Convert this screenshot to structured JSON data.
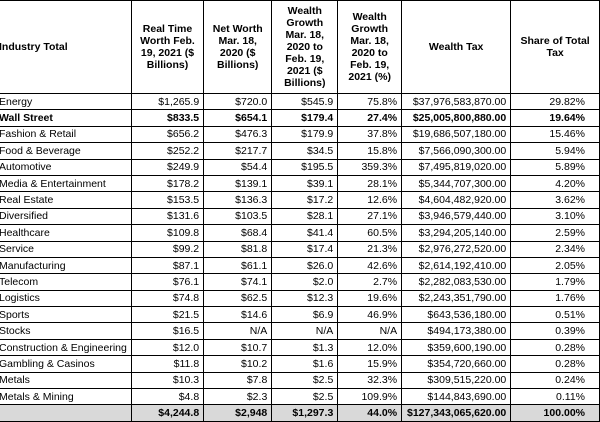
{
  "columns": [
    "Industry Total",
    "Real Time Worth Feb. 19, 2021 ($ Billions)",
    "Net Worth Mar. 18, 2020 ($ Billions)",
    "Wealth Growth Mar. 18, 2020 to Feb. 19, 2021 ($ Billions)",
    "Wealth Growth Mar. 18, 2020 to Feb. 19, 2021 (%)",
    "Wealth Tax",
    "Share of Total Tax"
  ],
  "rows": [
    {
      "industry": "Energy",
      "real": "$1,265.9",
      "net": "$720.0",
      "growth": "$545.9",
      "pct": "75.8%",
      "tax": "$37,976,583,870.00",
      "share": "29.82%",
      "bold": false
    },
    {
      "industry": "Wall Street",
      "real": "$833.5",
      "net": "$654.1",
      "growth": "$179.4",
      "pct": "27.4%",
      "tax": "$25,005,800,880.00",
      "share": "19.64%",
      "bold": true
    },
    {
      "industry": "Fashion & Retail",
      "real": "$656.2",
      "net": "$476.3",
      "growth": "$179.9",
      "pct": "37.8%",
      "tax": "$19,686,507,180.00",
      "share": "15.46%",
      "bold": false
    },
    {
      "industry": "Food & Beverage",
      "real": "$252.2",
      "net": "$217.7",
      "growth": "$34.5",
      "pct": "15.8%",
      "tax": "$7,566,090,300.00",
      "share": "5.94%",
      "bold": false
    },
    {
      "industry": "Automotive",
      "real": "$249.9",
      "net": "$54.4",
      "growth": "$195.5",
      "pct": "359.3%",
      "tax": "$7,495,819,020.00",
      "share": "5.89%",
      "bold": false
    },
    {
      "industry": "Media & Entertainment",
      "real": "$178.2",
      "net": "$139.1",
      "growth": "$39.1",
      "pct": "28.1%",
      "tax": "$5,344,707,300.00",
      "share": "4.20%",
      "bold": false
    },
    {
      "industry": "Real Estate",
      "real": "$153.5",
      "net": "$136.3",
      "growth": "$17.2",
      "pct": "12.6%",
      "tax": "$4,604,482,920.00",
      "share": "3.62%",
      "bold": false
    },
    {
      "industry": "Diversified",
      "real": "$131.6",
      "net": "$103.5",
      "growth": "$28.1",
      "pct": "27.1%",
      "tax": "$3,946,579,440.00",
      "share": "3.10%",
      "bold": false
    },
    {
      "industry": "Healthcare",
      "real": "$109.8",
      "net": "$68.4",
      "growth": "$41.4",
      "pct": "60.5%",
      "tax": "$3,294,205,140.00",
      "share": "2.59%",
      "bold": false
    },
    {
      "industry": "Service",
      "real": "$99.2",
      "net": "$81.8",
      "growth": "$17.4",
      "pct": "21.3%",
      "tax": "$2,976,272,520.00",
      "share": "2.34%",
      "bold": false
    },
    {
      "industry": "Manufacturing",
      "real": "$87.1",
      "net": "$61.1",
      "growth": "$26.0",
      "pct": "42.6%",
      "tax": "$2,614,192,410.00",
      "share": "2.05%",
      "bold": false
    },
    {
      "industry": "Telecom",
      "real": "$76.1",
      "net": "$74.1",
      "growth": "$2.0",
      "pct": "2.7%",
      "tax": "$2,282,083,530.00",
      "share": "1.79%",
      "bold": false
    },
    {
      "industry": "Logistics",
      "real": "$74.8",
      "net": "$62.5",
      "growth": "$12.3",
      "pct": "19.6%",
      "tax": "$2,243,351,790.00",
      "share": "1.76%",
      "bold": false
    },
    {
      "industry": "Sports",
      "real": "$21.5",
      "net": "$14.6",
      "growth": "$6.9",
      "pct": "46.9%",
      "tax": "$643,536,180.00",
      "share": "0.51%",
      "bold": false
    },
    {
      "industry": "Stocks",
      "real": "$16.5",
      "net": "N/A",
      "growth": "N/A",
      "pct": "N/A",
      "tax": "$494,173,380.00",
      "share": "0.39%",
      "bold": false
    },
    {
      "industry": "Construction & Engineering",
      "real": "$12.0",
      "net": "$10.7",
      "growth": "$1.3",
      "pct": "12.0%",
      "tax": "$359,600,190.00",
      "share": "0.28%",
      "bold": false
    },
    {
      "industry": "Gambling & Casinos",
      "real": "$11.8",
      "net": "$10.2",
      "growth": "$1.6",
      "pct": "15.9%",
      "tax": "$354,720,660.00",
      "share": "0.28%",
      "bold": false
    },
    {
      "industry": "Metals",
      "real": "$10.3",
      "net": "$7.8",
      "growth": "$2.5",
      "pct": "32.3%",
      "tax": "$309,515,220.00",
      "share": "0.24%",
      "bold": false
    },
    {
      "industry": "Metals & Mining",
      "real": "$4.8",
      "net": "$2.3",
      "growth": "$2.5",
      "pct": "109.9%",
      "tax": "$144,843,690.00",
      "share": "0.11%",
      "bold": false
    }
  ],
  "total": {
    "industry": "",
    "real": "$4,244.8",
    "net": "$2,948",
    "growth": "$1,297.3",
    "pct": "44.0%",
    "tax": "$127,343,065,620.00",
    "share": "100.00%"
  },
  "colors": {
    "total_fill": "#d9d9d9",
    "border": "#000000"
  }
}
